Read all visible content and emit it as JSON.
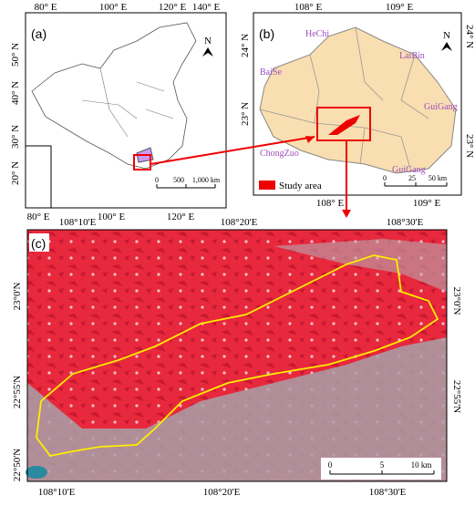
{
  "panel_a": {
    "label": "(a)",
    "north": "N",
    "top_ticks": [
      "80° E",
      "100° E",
      "120° E",
      "140° E"
    ],
    "bottom_ticks": [
      "80° E",
      "100° E",
      "120° E"
    ],
    "left_ticks": [
      "50° N",
      "40° N",
      "30° N",
      "20° N"
    ],
    "scale": [
      "0",
      "500",
      "1,000 km"
    ]
  },
  "panel_b": {
    "label": "(b)",
    "north": "N",
    "top_ticks": [
      "108° E",
      "109° E"
    ],
    "bottom_ticks": [
      "108° E",
      "109° E"
    ],
    "left_ticks": [
      "24° N",
      "23° N"
    ],
    "right_ticks": [
      "24° N",
      "23° N"
    ],
    "places": [
      "HeChi",
      "LaiBin",
      "BaiSe",
      "GuiGang",
      "ChongZuo",
      "GuiGang"
    ],
    "legend": "Study area",
    "scale": [
      "0",
      "25",
      "50 km"
    ]
  },
  "panel_c": {
    "label": "(c)",
    "top_ticks": [
      "108°10'E",
      "108°20'E",
      "108°30'E"
    ],
    "bottom_ticks": [
      "108°10'E",
      "108°20'E",
      "108°30'E"
    ],
    "left_ticks": [
      "23°0'N",
      "22°55'N",
      "22°50'N"
    ],
    "right_ticks": [
      "23°0'N",
      "22°55'N"
    ],
    "scale": [
      "0",
      "5",
      "10 km"
    ]
  }
}
